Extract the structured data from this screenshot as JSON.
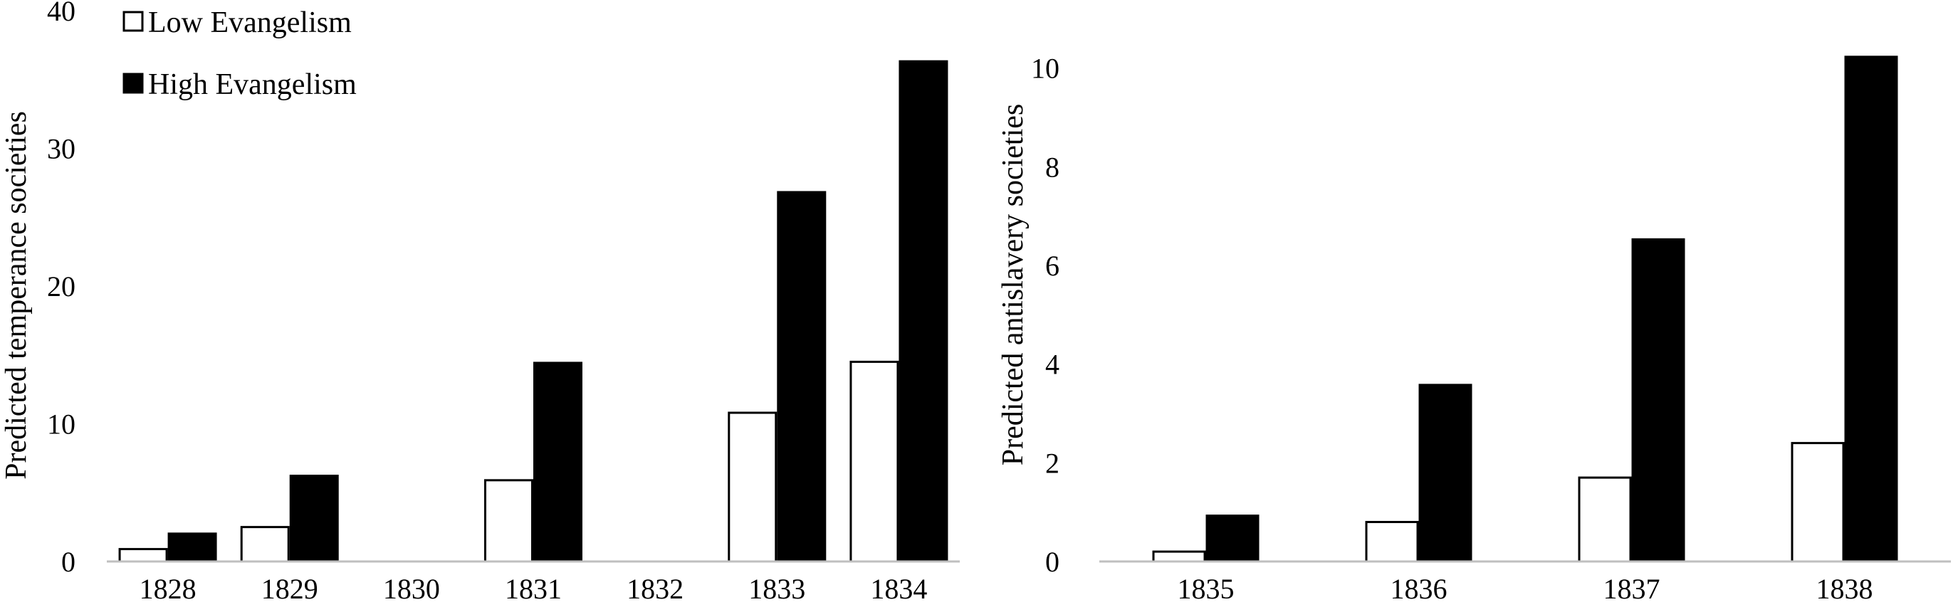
{
  "chart_data": [
    {
      "type": "bar",
      "categories": [
        "1828",
        "1829",
        "1830",
        "1831",
        "1832",
        "1833",
        "1834"
      ],
      "series": [
        {
          "name": "Low Evangelism",
          "values": [
            0.9,
            2.5,
            null,
            5.9,
            null,
            10.8,
            14.5
          ],
          "color": "#ffffff",
          "stroke": "#000000"
        },
        {
          "name": "High Evangelism",
          "values": [
            2.1,
            6.3,
            null,
            14.5,
            null,
            26.9,
            36.4
          ],
          "color": "#000000",
          "stroke": "#000000"
        }
      ],
      "title": "",
      "xlabel": "",
      "ylabel": "Predicted temperance societies",
      "ylim": [
        0,
        40
      ],
      "yticks": [
        "0",
        "10",
        "20",
        "30",
        "40"
      ],
      "grid": false,
      "legend": "top-left"
    },
    {
      "type": "bar",
      "categories": [
        "1835",
        "1836",
        "1837",
        "1838"
      ],
      "series": [
        {
          "name": "Low Evangelism",
          "values": [
            0.2,
            0.8,
            1.7,
            2.4
          ],
          "color": "#ffffff",
          "stroke": "#000000"
        },
        {
          "name": "High Evangelism",
          "values": [
            0.95,
            3.6,
            6.55,
            10.25
          ],
          "color": "#000000",
          "stroke": "#000000"
        }
      ],
      "title": "",
      "xlabel": "",
      "ylabel": "Predicted antislavery societies",
      "ylim": [
        0,
        10.5
      ],
      "yticks": [
        "0",
        "2",
        "4",
        "6",
        "8",
        "10"
      ],
      "grid": false,
      "legend": "none"
    }
  ]
}
